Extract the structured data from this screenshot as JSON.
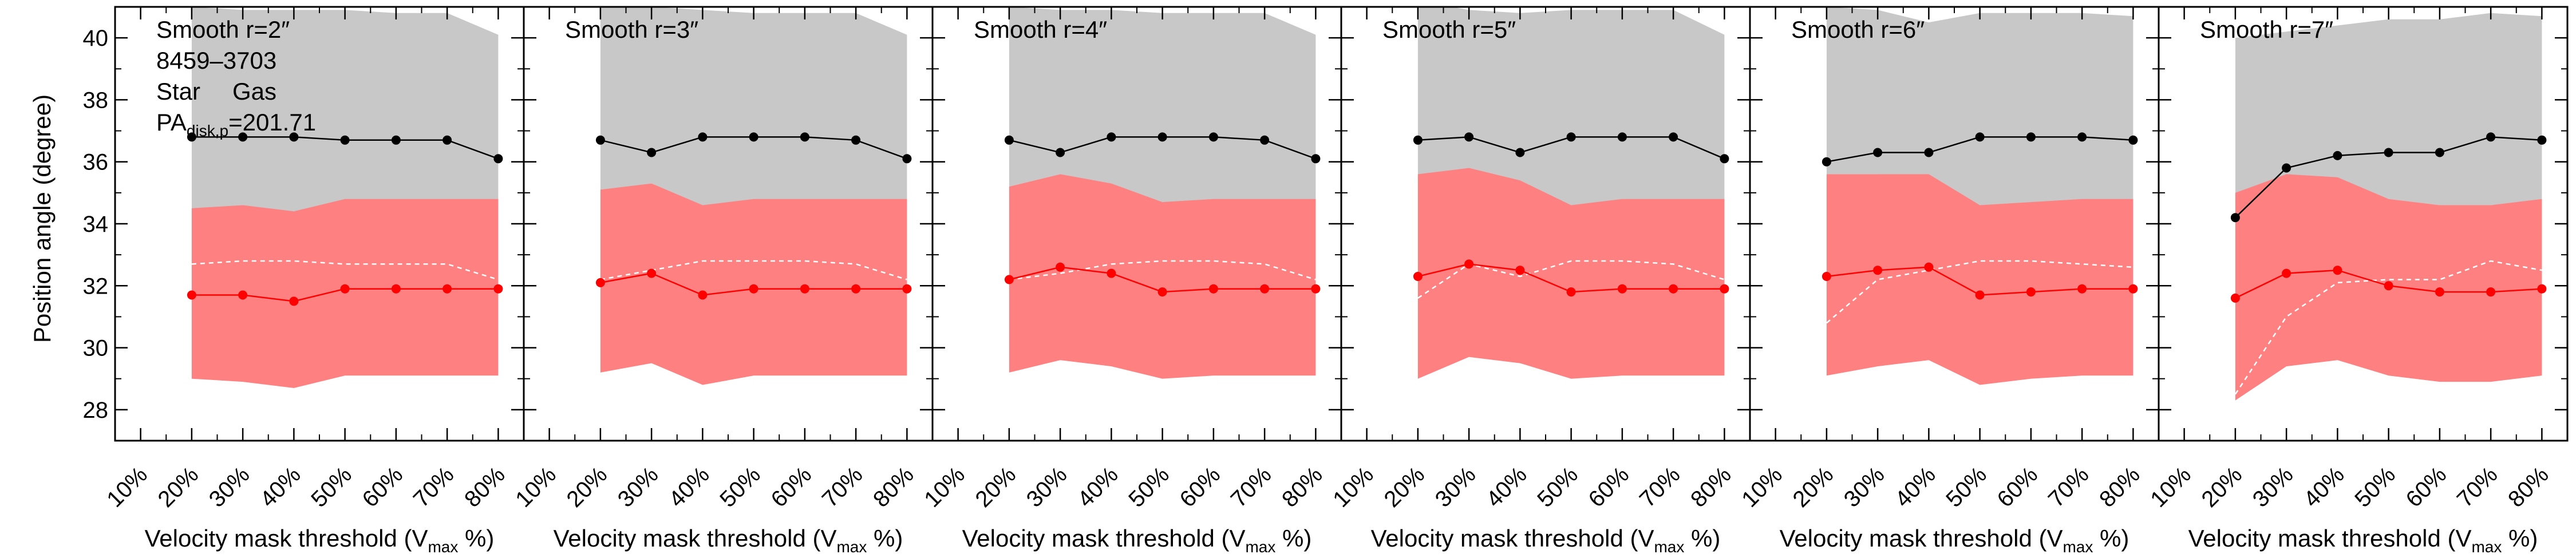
{
  "figure": {
    "ylabel": "Position angle (degree)",
    "xlabel_main": "Velocity mask threshold (V",
    "xlabel_sub": "max",
    "xlabel_end": " %)",
    "colors": {
      "star_band": "#c8c8c8",
      "gas_band": "#ff8080",
      "star_line": "#000000",
      "gas_line": "#ff0000",
      "dashed": "#ffffff"
    },
    "legend": {
      "galaxy_id": "8459–3703",
      "star_label": "Star",
      "gas_label": "Gas",
      "pa_main": "PA",
      "pa_sub": "disk,p",
      "pa_value": "=201.71"
    }
  },
  "chart_data": [
    {
      "type": "line",
      "title": "Smooth r=2″",
      "categories": [
        "10%",
        "20%",
        "30%",
        "40%",
        "50%",
        "60%",
        "70%",
        "80%"
      ],
      "x": [
        20,
        30,
        40,
        50,
        60,
        70,
        80
      ],
      "ylim": [
        27,
        41
      ],
      "xlim": [
        5,
        85
      ],
      "yticks": [
        28,
        30,
        32,
        34,
        36,
        38,
        40
      ],
      "series": [
        {
          "name": "Star",
          "values": [
            36.8,
            36.8,
            36.8,
            36.7,
            36.7,
            36.7,
            36.1
          ]
        },
        {
          "name": "Gas",
          "values": [
            31.7,
            31.7,
            31.5,
            31.9,
            31.9,
            31.9,
            31.9
          ]
        }
      ],
      "star_band": {
        "upper": [
          41.0,
          40.9,
          40.9,
          40.9,
          40.8,
          40.8,
          40.1
        ],
        "lower": [
          34.5,
          34.5,
          34.4,
          34.7,
          34.7,
          34.7,
          34.7
        ]
      },
      "gas_band": {
        "upper": [
          34.5,
          34.6,
          34.4,
          34.8,
          34.8,
          34.8,
          34.8
        ],
        "lower": [
          29.0,
          28.9,
          28.7,
          29.1,
          29.1,
          29.1,
          29.1
        ]
      },
      "dashed": [
        32.7,
        32.8,
        32.8,
        32.7,
        32.7,
        32.7,
        32.2
      ]
    },
    {
      "type": "line",
      "title": "Smooth r=3″",
      "categories": [
        "10%",
        "20%",
        "30%",
        "40%",
        "50%",
        "60%",
        "70%",
        "80%"
      ],
      "x": [
        20,
        30,
        40,
        50,
        60,
        70,
        80
      ],
      "ylim": [
        27,
        41
      ],
      "xlim": [
        5,
        85
      ],
      "yticks": [
        28,
        30,
        32,
        34,
        36,
        38,
        40
      ],
      "series": [
        {
          "name": "Star",
          "values": [
            36.7,
            36.3,
            36.8,
            36.8,
            36.8,
            36.7,
            36.1
          ]
        },
        {
          "name": "Gas",
          "values": [
            32.1,
            32.4,
            31.7,
            31.9,
            31.9,
            31.9,
            31.9
          ]
        }
      ],
      "star_band": {
        "upper": [
          41.0,
          41.0,
          40.9,
          40.8,
          40.8,
          40.8,
          40.1
        ],
        "lower": [
          35.0,
          35.3,
          34.5,
          34.7,
          34.7,
          34.7,
          34.7
        ]
      },
      "gas_band": {
        "upper": [
          35.1,
          35.3,
          34.6,
          34.8,
          34.8,
          34.8,
          34.8
        ],
        "lower": [
          29.2,
          29.5,
          28.8,
          29.1,
          29.1,
          29.1,
          29.1
        ]
      },
      "dashed": [
        32.2,
        32.5,
        32.8,
        32.8,
        32.8,
        32.7,
        32.2
      ]
    },
    {
      "type": "line",
      "title": "Smooth r=4″",
      "categories": [
        "10%",
        "20%",
        "30%",
        "40%",
        "50%",
        "60%",
        "70%",
        "80%"
      ],
      "x": [
        20,
        30,
        40,
        50,
        60,
        70,
        80
      ],
      "ylim": [
        27,
        41
      ],
      "xlim": [
        5,
        85
      ],
      "yticks": [
        28,
        30,
        32,
        34,
        36,
        38,
        40
      ],
      "series": [
        {
          "name": "Star",
          "values": [
            36.7,
            36.3,
            36.8,
            36.8,
            36.8,
            36.7,
            36.1
          ]
        },
        {
          "name": "Gas",
          "values": [
            32.2,
            32.6,
            32.4,
            31.8,
            31.9,
            31.9,
            31.9
          ]
        }
      ],
      "star_band": {
        "upper": [
          41.0,
          40.9,
          40.9,
          40.8,
          40.8,
          40.8,
          40.1
        ],
        "lower": [
          35.2,
          35.6,
          35.2,
          34.7,
          34.7,
          34.7,
          34.7
        ]
      },
      "gas_band": {
        "upper": [
          35.2,
          35.6,
          35.3,
          34.7,
          34.8,
          34.8,
          34.8
        ],
        "lower": [
          29.2,
          29.6,
          29.4,
          29.0,
          29.1,
          29.1,
          29.1
        ]
      },
      "dashed": [
        32.2,
        32.4,
        32.7,
        32.8,
        32.8,
        32.7,
        32.2
      ]
    },
    {
      "type": "line",
      "title": "Smooth r=5″",
      "categories": [
        "10%",
        "20%",
        "30%",
        "40%",
        "50%",
        "60%",
        "70%",
        "80%"
      ],
      "x": [
        20,
        30,
        40,
        50,
        60,
        70,
        80
      ],
      "ylim": [
        27,
        41
      ],
      "xlim": [
        5,
        85
      ],
      "yticks": [
        28,
        30,
        32,
        34,
        36,
        38,
        40
      ],
      "series": [
        {
          "name": "Star",
          "values": [
            36.7,
            36.8,
            36.3,
            36.8,
            36.8,
            36.8,
            36.1
          ]
        },
        {
          "name": "Gas",
          "values": [
            32.3,
            32.7,
            32.5,
            31.8,
            31.9,
            31.9,
            31.9
          ]
        }
      ],
      "star_band": {
        "upper": [
          41.2,
          40.9,
          40.8,
          40.9,
          40.9,
          40.9,
          40.1
        ],
        "lower": [
          35.6,
          35.7,
          35.3,
          34.6,
          34.7,
          34.7,
          34.7
        ]
      },
      "gas_band": {
        "upper": [
          35.6,
          35.8,
          35.4,
          34.6,
          34.8,
          34.8,
          34.8
        ],
        "lower": [
          29.0,
          29.7,
          29.5,
          29.0,
          29.1,
          29.1,
          29.1
        ]
      },
      "dashed": [
        31.6,
        32.7,
        32.3,
        32.8,
        32.8,
        32.7,
        32.2
      ]
    },
    {
      "type": "line",
      "title": "Smooth r=6″",
      "categories": [
        "10%",
        "20%",
        "30%",
        "40%",
        "50%",
        "60%",
        "70%",
        "80%"
      ],
      "x": [
        20,
        30,
        40,
        50,
        60,
        70,
        80
      ],
      "ylim": [
        27,
        41
      ],
      "xlim": [
        5,
        85
      ],
      "yticks": [
        28,
        30,
        32,
        34,
        36,
        38,
        40
      ],
      "series": [
        {
          "name": "Star",
          "values": [
            36.0,
            36.3,
            36.3,
            36.8,
            36.8,
            36.8,
            36.7
          ]
        },
        {
          "name": "Gas",
          "values": [
            32.3,
            32.5,
            32.6,
            31.7,
            31.8,
            31.9,
            31.9
          ]
        }
      ],
      "star_band": {
        "upper": [
          41.0,
          40.9,
          40.5,
          40.8,
          40.8,
          40.8,
          40.7
        ],
        "lower": [
          35.6,
          35.6,
          35.5,
          34.6,
          34.6,
          34.7,
          34.7
        ]
      },
      "gas_band": {
        "upper": [
          35.6,
          35.6,
          35.6,
          34.6,
          34.7,
          34.8,
          34.8
        ],
        "lower": [
          29.1,
          29.4,
          29.6,
          28.8,
          29.0,
          29.1,
          29.1
        ]
      },
      "dashed": [
        30.8,
        32.2,
        32.5,
        32.8,
        32.8,
        32.7,
        32.6
      ]
    },
    {
      "type": "line",
      "title": "Smooth r=7″",
      "categories": [
        "10%",
        "20%",
        "30%",
        "40%",
        "50%",
        "60%",
        "70%",
        "80%"
      ],
      "x": [
        20,
        30,
        40,
        50,
        60,
        70,
        80
      ],
      "ylim": [
        27,
        41
      ],
      "xlim": [
        5,
        85
      ],
      "yticks": [
        28,
        30,
        32,
        34,
        36,
        38,
        40
      ],
      "series": [
        {
          "name": "Star",
          "values": [
            34.2,
            35.8,
            36.2,
            36.3,
            36.3,
            36.8,
            36.7
          ]
        },
        {
          "name": "Gas",
          "values": [
            31.6,
            32.4,
            32.5,
            32.0,
            31.8,
            31.8,
            31.9
          ]
        }
      ],
      "star_band": {
        "upper": [
          40.0,
          40.2,
          40.4,
          40.6,
          40.6,
          40.8,
          40.7
        ],
        "lower": [
          34.9,
          35.5,
          35.4,
          34.8,
          34.6,
          34.6,
          34.7
        ]
      },
      "gas_band": {
        "upper": [
          35.0,
          35.6,
          35.5,
          34.8,
          34.6,
          34.6,
          34.8
        ],
        "lower": [
          28.3,
          29.4,
          29.6,
          29.1,
          28.9,
          28.9,
          29.1
        ]
      },
      "dashed": [
        28.5,
        31.0,
        32.1,
        32.2,
        32.2,
        32.8,
        32.5
      ]
    }
  ]
}
